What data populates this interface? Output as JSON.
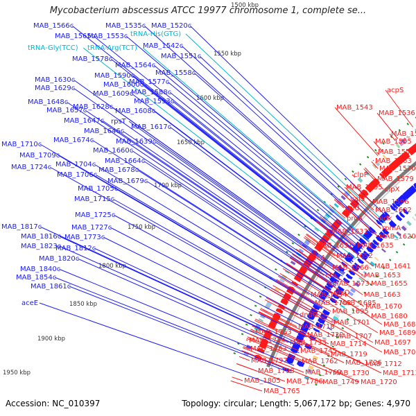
{
  "title": "Mycobacterium abscessus ATCC 19977 chromosome 1, complete se...",
  "footer": {
    "accession": "Accession: NC_010397",
    "summary": "Topology: circular; Length: 5,067,172 bp; Genes: 4,970"
  },
  "colors": {
    "left_strand": "#1a1aff",
    "right_strand": "#ff1a1a",
    "trna": "#00b8d0",
    "backbone": "#7a7a7a",
    "ticks": "#1f8f1f"
  },
  "kbp_markers": [
    {
      "label": "1500 kbp"
    },
    {
      "label": "1550 kbp"
    },
    {
      "label": "1600 kbp"
    },
    {
      "label": "1650 kbp"
    },
    {
      "label": "1700 kbp"
    },
    {
      "label": "1750 kbp"
    },
    {
      "label": "1800 kbp"
    },
    {
      "label": "1850 kbp"
    },
    {
      "label": "1900 kbp"
    },
    {
      "label": "1950 kbp"
    }
  ],
  "left_labels": [
    {
      "text": "MAB_1535c",
      "kind": "gene"
    },
    {
      "text": "MAB_1520c",
      "kind": "gene"
    },
    {
      "text": "tRNA-His(GTG)",
      "kind": "trna"
    },
    {
      "text": "MAB_1566c",
      "kind": "gene"
    },
    {
      "text": "MAB_1565c",
      "kind": "gene"
    },
    {
      "text": "MAB_1553c",
      "kind": "gene"
    },
    {
      "text": "MAB_1542c",
      "kind": "gene"
    },
    {
      "text": "tRNA-Gly(TCC)",
      "kind": "trna"
    },
    {
      "text": "tRNA-Arg(TCT)",
      "kind": "trna"
    },
    {
      "text": "MAB_1551c",
      "kind": "gene"
    },
    {
      "text": "MAB_1578c",
      "kind": "gene"
    },
    {
      "text": "MAB_1564c",
      "kind": "gene"
    },
    {
      "text": "MAB_1558c",
      "kind": "gene"
    },
    {
      "text": "MAB_1590c",
      "kind": "gene"
    },
    {
      "text": "MAB_1577c",
      "kind": "gene"
    },
    {
      "text": "MAB_1630c",
      "kind": "gene"
    },
    {
      "text": "MAB_1600c",
      "kind": "gene"
    },
    {
      "text": "MAB_1629c",
      "kind": "gene"
    },
    {
      "text": "MAB_1588c",
      "kind": "gene"
    },
    {
      "text": "MAB_1609c",
      "kind": "gene"
    },
    {
      "text": "MAB_1593c",
      "kind": "gene"
    },
    {
      "text": "MAB_1648c",
      "kind": "gene"
    },
    {
      "text": "MAB_1628c",
      "kind": "gene"
    },
    {
      "text": "MAB_1657c",
      "kind": "gene"
    },
    {
      "text": "MAB_1608c",
      "kind": "gene"
    },
    {
      "text": "MAB_1647c",
      "kind": "gene"
    },
    {
      "text": "rpsT",
      "kind": "gene"
    },
    {
      "text": "MAB_1617c",
      "kind": "gene"
    },
    {
      "text": "MAB_1646c",
      "kind": "gene"
    },
    {
      "text": "MAB_1674c",
      "kind": "gene"
    },
    {
      "text": "MAB_1639c",
      "kind": "gene"
    },
    {
      "text": "MAB_1710c",
      "kind": "gene"
    },
    {
      "text": "MAB_1660c",
      "kind": "gene"
    },
    {
      "text": "MAB_1709c",
      "kind": "gene"
    },
    {
      "text": "MAB_1664c",
      "kind": "gene"
    },
    {
      "text": "MAB_1704c",
      "kind": "gene"
    },
    {
      "text": "MAB_1724c",
      "kind": "gene"
    },
    {
      "text": "MAB_1678c",
      "kind": "gene"
    },
    {
      "text": "MAB_1706c",
      "kind": "gene"
    },
    {
      "text": "MAB_1679c",
      "kind": "gene"
    },
    {
      "text": "MAB_1705c",
      "kind": "gene"
    },
    {
      "text": "MAB_1715c",
      "kind": "gene"
    },
    {
      "text": "MAB_1725c",
      "kind": "gene"
    },
    {
      "text": "MAB_1817c",
      "kind": "gene"
    },
    {
      "text": "MAB_1727c",
      "kind": "gene"
    },
    {
      "text": "MAB_1816c",
      "kind": "gene"
    },
    {
      "text": "MAB_1773c",
      "kind": "gene"
    },
    {
      "text": "MAB_1823c",
      "kind": "gene"
    },
    {
      "text": "MAB_1812c",
      "kind": "gene"
    },
    {
      "text": "MAB_1820c",
      "kind": "gene"
    },
    {
      "text": "MAB_1840c",
      "kind": "gene"
    },
    {
      "text": "MAB_1854c",
      "kind": "gene"
    },
    {
      "text": "MAB_1861c",
      "kind": "gene"
    },
    {
      "text": "aceE",
      "kind": "gene"
    }
  ],
  "right_labels": [
    "acpS",
    "MAB_1543",
    "MAB_1536",
    "MAB_1550",
    "MAB_1555",
    "MAB_1559",
    "MAB_1563",
    "clpP",
    "MAB_1570",
    "MAB_1579",
    "MAB_1595",
    "clpX",
    "valS",
    "MAB_1596",
    "rplU",
    "MAB_1602",
    "proA",
    "ndk",
    "rpmA",
    "MAB_1633",
    "MAB_1620",
    "MAB_1651",
    "MAB_1635",
    "hrcA",
    "MAB_1652",
    "MAB_1641",
    "MAB_1666",
    "era",
    "MAB_1653",
    "MAB_1673",
    "MAB_1655",
    "recO",
    "MAB_1663",
    "MAB_1694",
    "MAB_1685",
    "MAB_1702",
    "MAB_1670",
    "MAB_1695",
    "dnaG",
    "MAB_1680",
    "MAB_1701",
    "MAB_1684",
    "MAB_1718",
    "MAB_1753",
    "MAB_1689",
    "MAB_1722",
    "MAB_1707",
    "MAB_1774",
    "MAB_1697",
    "MAB_1733",
    "MAB_1714",
    "MAB_1783",
    "MAB_1745",
    "MAB_1703",
    "MAB_1719",
    "MAB_1797",
    "MAB_1762",
    "MAB_1726",
    "MAB_1712",
    "MAB_1798",
    "MAB_1769",
    "MAB_1730",
    "MAB_1713",
    "MAB_1805",
    "MAB_1786",
    "MAB_1749",
    "MAB_1720",
    "MAB_1765"
  ]
}
